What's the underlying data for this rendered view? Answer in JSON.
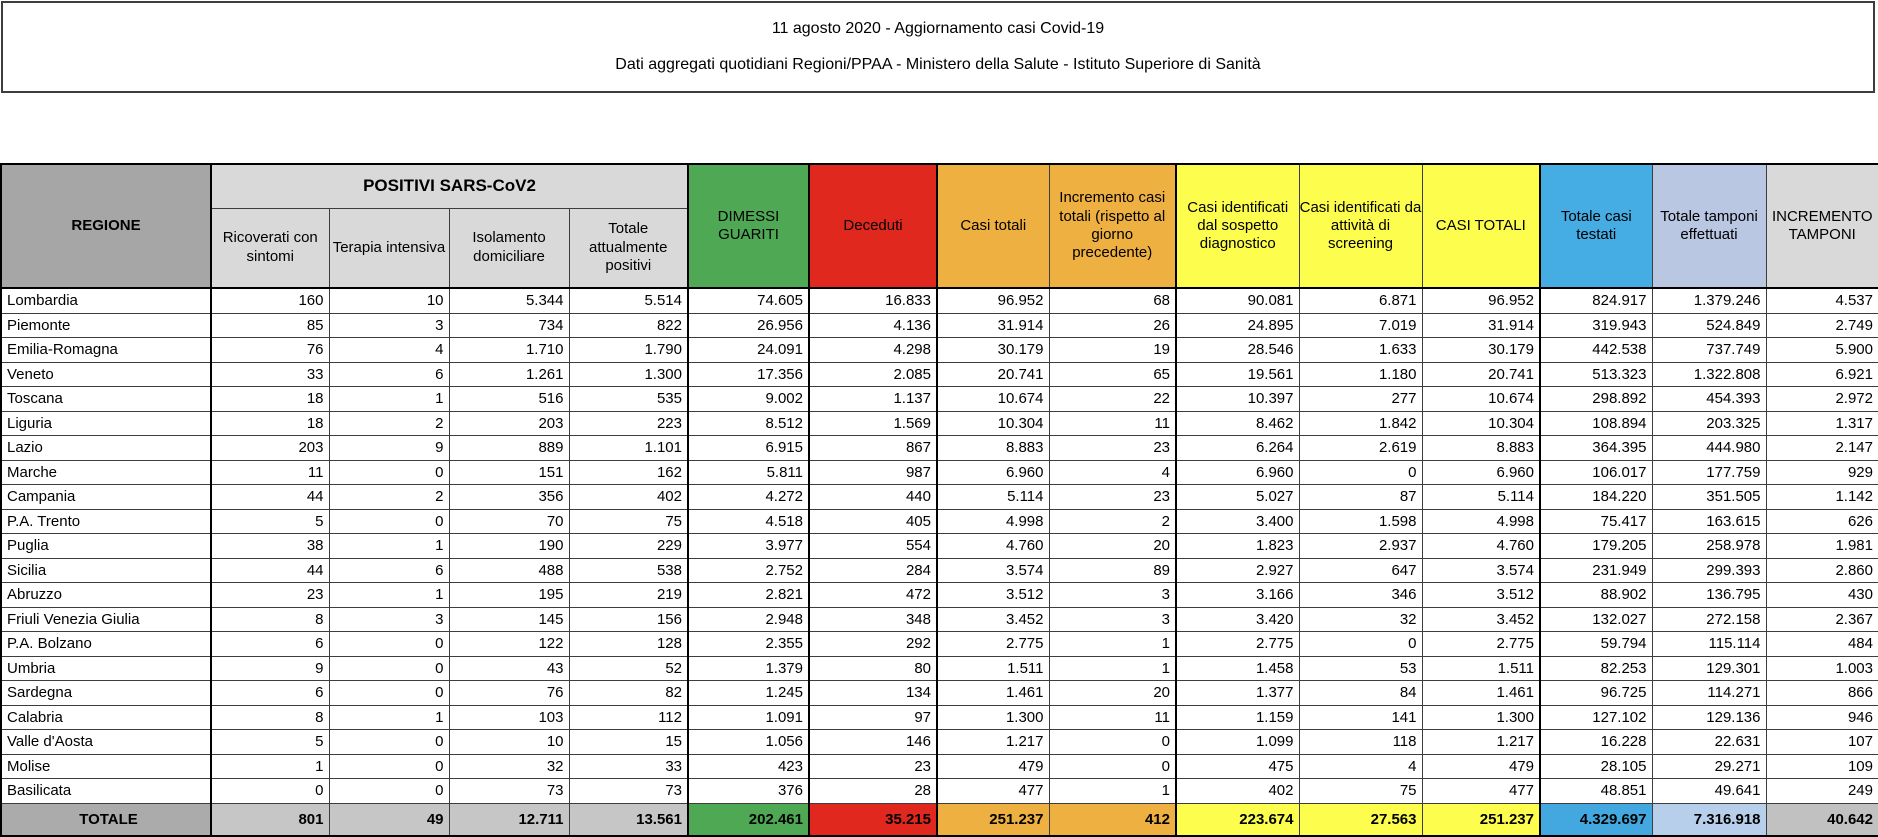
{
  "title": {
    "line1": "11 agosto 2020 - Aggiornamento casi Covid-19",
    "line2": "Dati aggregati quotidiani Regioni/PPAA - Ministero della Salute - Istituto Superiore di Sanità"
  },
  "colors": {
    "header_grey_dark": "#a6a6a6",
    "header_grey_light": "#d9d9d9",
    "green": "#4fa853",
    "red": "#e1281e",
    "orange": "#eeb041",
    "yellow": "#fdfd4e",
    "blue": "#45ace4",
    "lavender": "#b9c7e3",
    "total_row_grey": "#c6c6c6"
  },
  "table": {
    "region_header": "REGIONE",
    "group_header": "POSITIVI SARS-CoV2",
    "sub_headers": [
      "Ricoverati con sintomi",
      "Terapia intensiva",
      "Isolamento domiciliare",
      "Totale attualmente positivi"
    ],
    "col_headers": [
      "DIMESSI GUARITI",
      "Deceduti",
      "Casi totali",
      "Incremento casi totali (rispetto al giorno precedente)",
      "Casi identificati dal sospetto diagnostico",
      "Casi identificati da attività di screening",
      "CASI TOTALI",
      "Totale casi testati",
      "Totale tamponi effettuati",
      "INCREMENTO TAMPONI"
    ],
    "rows": [
      {
        "region": "Lombardia",
        "values": [
          "160",
          "10",
          "5.344",
          "5.514",
          "74.605",
          "16.833",
          "96.952",
          "68",
          "90.081",
          "6.871",
          "96.952",
          "824.917",
          "1.379.246",
          "4.537"
        ]
      },
      {
        "region": "Piemonte",
        "values": [
          "85",
          "3",
          "734",
          "822",
          "26.956",
          "4.136",
          "31.914",
          "26",
          "24.895",
          "7.019",
          "31.914",
          "319.943",
          "524.849",
          "2.749"
        ]
      },
      {
        "region": "Emilia-Romagna",
        "values": [
          "76",
          "4",
          "1.710",
          "1.790",
          "24.091",
          "4.298",
          "30.179",
          "19",
          "28.546",
          "1.633",
          "30.179",
          "442.538",
          "737.749",
          "5.900"
        ]
      },
      {
        "region": "Veneto",
        "values": [
          "33",
          "6",
          "1.261",
          "1.300",
          "17.356",
          "2.085",
          "20.741",
          "65",
          "19.561",
          "1.180",
          "20.741",
          "513.323",
          "1.322.808",
          "6.921"
        ]
      },
      {
        "region": "Toscana",
        "values": [
          "18",
          "1",
          "516",
          "535",
          "9.002",
          "1.137",
          "10.674",
          "22",
          "10.397",
          "277",
          "10.674",
          "298.892",
          "454.393",
          "2.972"
        ]
      },
      {
        "region": "Liguria",
        "values": [
          "18",
          "2",
          "203",
          "223",
          "8.512",
          "1.569",
          "10.304",
          "11",
          "8.462",
          "1.842",
          "10.304",
          "108.894",
          "203.325",
          "1.317"
        ]
      },
      {
        "region": "Lazio",
        "values": [
          "203",
          "9",
          "889",
          "1.101",
          "6.915",
          "867",
          "8.883",
          "23",
          "6.264",
          "2.619",
          "8.883",
          "364.395",
          "444.980",
          "2.147"
        ]
      },
      {
        "region": "Marche",
        "values": [
          "11",
          "0",
          "151",
          "162",
          "5.811",
          "987",
          "6.960",
          "4",
          "6.960",
          "0",
          "6.960",
          "106.017",
          "177.759",
          "929"
        ]
      },
      {
        "region": "Campania",
        "values": [
          "44",
          "2",
          "356",
          "402",
          "4.272",
          "440",
          "5.114",
          "23",
          "5.027",
          "87",
          "5.114",
          "184.220",
          "351.505",
          "1.142"
        ]
      },
      {
        "region": "P.A. Trento",
        "values": [
          "5",
          "0",
          "70",
          "75",
          "4.518",
          "405",
          "4.998",
          "2",
          "3.400",
          "1.598",
          "4.998",
          "75.417",
          "163.615",
          "626"
        ]
      },
      {
        "region": "Puglia",
        "values": [
          "38",
          "1",
          "190",
          "229",
          "3.977",
          "554",
          "4.760",
          "20",
          "1.823",
          "2.937",
          "4.760",
          "179.205",
          "258.978",
          "1.981"
        ]
      },
      {
        "region": "Sicilia",
        "values": [
          "44",
          "6",
          "488",
          "538",
          "2.752",
          "284",
          "3.574",
          "89",
          "2.927",
          "647",
          "3.574",
          "231.949",
          "299.393",
          "2.860"
        ]
      },
      {
        "region": "Abruzzo",
        "values": [
          "23",
          "1",
          "195",
          "219",
          "2.821",
          "472",
          "3.512",
          "3",
          "3.166",
          "346",
          "3.512",
          "88.902",
          "136.795",
          "430"
        ]
      },
      {
        "region": "Friuli Venezia Giulia",
        "values": [
          "8",
          "3",
          "145",
          "156",
          "2.948",
          "348",
          "3.452",
          "3",
          "3.420",
          "32",
          "3.452",
          "132.027",
          "272.158",
          "2.367"
        ]
      },
      {
        "region": "P.A. Bolzano",
        "values": [
          "6",
          "0",
          "122",
          "128",
          "2.355",
          "292",
          "2.775",
          "1",
          "2.775",
          "0",
          "2.775",
          "59.794",
          "115.114",
          "484"
        ]
      },
      {
        "region": "Umbria",
        "values": [
          "9",
          "0",
          "43",
          "52",
          "1.379",
          "80",
          "1.511",
          "1",
          "1.458",
          "53",
          "1.511",
          "82.253",
          "129.301",
          "1.003"
        ]
      },
      {
        "region": "Sardegna",
        "values": [
          "6",
          "0",
          "76",
          "82",
          "1.245",
          "134",
          "1.461",
          "20",
          "1.377",
          "84",
          "1.461",
          "96.725",
          "114.271",
          "866"
        ]
      },
      {
        "region": "Calabria",
        "values": [
          "8",
          "1",
          "103",
          "112",
          "1.091",
          "97",
          "1.300",
          "11",
          "1.159",
          "141",
          "1.300",
          "127.102",
          "129.136",
          "946"
        ]
      },
      {
        "region": "Valle d'Aosta",
        "values": [
          "5",
          "0",
          "10",
          "15",
          "1.056",
          "146",
          "1.217",
          "0",
          "1.099",
          "118",
          "1.217",
          "16.228",
          "22.631",
          "107"
        ]
      },
      {
        "region": "Molise",
        "values": [
          "1",
          "0",
          "32",
          "33",
          "423",
          "23",
          "479",
          "0",
          "475",
          "4",
          "479",
          "28.105",
          "29.271",
          "109"
        ]
      },
      {
        "region": "Basilicata",
        "values": [
          "0",
          "0",
          "73",
          "73",
          "376",
          "28",
          "477",
          "1",
          "402",
          "75",
          "477",
          "48.851",
          "49.641",
          "249"
        ]
      }
    ],
    "total": {
      "label": "TOTALE",
      "values": [
        "801",
        "49",
        "12.711",
        "13.561",
        "202.461",
        "35.215",
        "251.237",
        "412",
        "223.674",
        "27.563",
        "251.237",
        "4.329.697",
        "7.316.918",
        "40.642"
      ]
    }
  }
}
